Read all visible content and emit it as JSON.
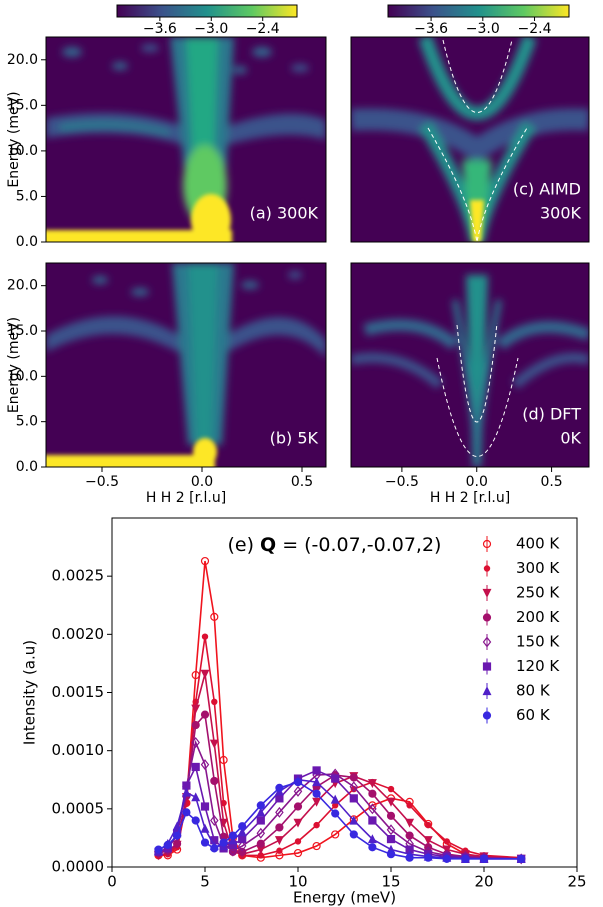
{
  "chart_data": [
    {
      "type": "heatmap",
      "annotation": [
        "(a) 300K"
      ],
      "ylabel": "Energy (meV)",
      "xlim": [
        -0.78,
        0.62
      ],
      "ylim": [
        0,
        22.5
      ],
      "yticks": [
        {
          "value": 0,
          "label": "0.0"
        },
        {
          "value": 5,
          "label": "5.0"
        },
        {
          "value": 10,
          "label": "10.0"
        },
        {
          "value": 15,
          "label": "15.0"
        },
        {
          "value": 20,
          "label": "20.0"
        }
      ],
      "colorbar": {
        "clim": [
          -4.1,
          -2.0
        ],
        "ticks": [
          {
            "value": -3.6,
            "label": "−3.6"
          },
          {
            "value": -3.0,
            "label": "−3.0"
          },
          {
            "value": -2.4,
            "label": "−2.4"
          }
        ]
      }
    },
    {
      "type": "heatmap",
      "annotation": [
        "(c) AIMD",
        "300K"
      ],
      "xlim": [
        -0.84,
        0.75
      ],
      "ylim": [
        0,
        22.5
      ],
      "colorbar": {
        "clim": [
          -4.1,
          -2.0
        ],
        "ticks": [
          {
            "value": -3.6,
            "label": "−3.6"
          },
          {
            "value": -3.0,
            "label": "−3.0"
          },
          {
            "value": -2.4,
            "label": "−2.4"
          }
        ]
      }
    },
    {
      "type": "heatmap",
      "annotation": [
        "(b) 5K"
      ],
      "ylabel": "Energy (meV)",
      "xlabel": "H H 2 [r.l.u]",
      "xlim": [
        -0.78,
        0.62
      ],
      "ylim": [
        0,
        22.5
      ],
      "xticks": [
        {
          "value": -0.5,
          "label": "−0.5"
        },
        {
          "value": 0,
          "label": "0.0"
        },
        {
          "value": 0.5,
          "label": "0.5"
        }
      ],
      "yticks": [
        {
          "value": 0,
          "label": "0.0"
        },
        {
          "value": 5,
          "label": "5.0"
        },
        {
          "value": 10,
          "label": "10.0"
        },
        {
          "value": 15,
          "label": "15.0"
        },
        {
          "value": 20,
          "label": "20.0"
        }
      ]
    },
    {
      "type": "heatmap",
      "annotation": [
        "(d) DFT",
        "0K"
      ],
      "xlabel": "H H 2 [r.l.u]",
      "xlim": [
        -0.84,
        0.75
      ],
      "ylim": [
        0,
        22.5
      ],
      "xticks": [
        {
          "value": -0.5,
          "label": "−0.5"
        },
        {
          "value": 0,
          "label": "0.0"
        },
        {
          "value": 0.5,
          "label": "0.5"
        }
      ]
    },
    {
      "type": "line",
      "title": [
        "(e)",
        "Q",
        "= (-0.07,-0.07,2)"
      ],
      "xlabel": "Energy (meV)",
      "ylabel": "Intensity (a.u)",
      "xlim": [
        0,
        25
      ],
      "ylim": [
        0,
        0.003
      ],
      "xticks": [
        0,
        5,
        10,
        15,
        20,
        25
      ],
      "yticks": [
        {
          "value": 0,
          "label": "0.0000"
        },
        {
          "value": 0.0005,
          "label": "0.0005"
        },
        {
          "value": 0.001,
          "label": "0.0010"
        },
        {
          "value": 0.0015,
          "label": "0.0015"
        },
        {
          "value": 0.002,
          "label": "0.0020"
        },
        {
          "value": 0.0025,
          "label": "0.0025"
        }
      ],
      "legend": "upper right",
      "x": [
        2.5,
        3,
        3.5,
        4,
        4.5,
        5,
        5.5,
        6,
        6.5,
        7,
        8,
        9,
        10,
        11,
        12,
        13,
        14,
        15,
        16,
        17,
        18,
        19,
        20,
        22
      ],
      "series": [
        {
          "name": "400 K",
          "color": "#f0141e",
          "marker": "circle-open",
          "values": [
            0.0001,
            0.0001,
            0.00015,
            0.00055,
            0.00165,
            0.00263,
            0.00215,
            0.00092,
            0.00025,
            0.0001,
            8e-05,
            0.0001,
            0.00012,
            0.00018,
            0.00028,
            0.00041,
            0.00053,
            0.00059,
            0.00056,
            0.00037,
            0.0002,
            0.00011,
            8e-05,
            7e-05
          ]
        },
        {
          "name": "300 K",
          "color": "#dc1032",
          "marker": "star",
          "values": [
            0.0001,
            0.00011,
            0.00017,
            0.00055,
            0.00142,
            0.00198,
            0.00142,
            0.00055,
            0.00017,
            0.0001,
            0.0001,
            0.00014,
            0.00022,
            0.00036,
            0.00053,
            0.00067,
            0.00073,
            0.00067,
            0.00053,
            0.00036,
            0.00022,
            0.00014,
            0.0001,
            8e-05
          ]
        },
        {
          "name": "250 K",
          "color": "#c4104c",
          "marker": "triangle-down",
          "values": [
            0.0001,
            0.00012,
            0.00019,
            0.0006,
            0.00136,
            0.00166,
            0.00106,
            0.00038,
            0.00013,
            0.00011,
            0.00015,
            0.00023,
            0.00038,
            0.00056,
            0.00072,
            0.00078,
            0.00072,
            0.00056,
            0.00038,
            0.00023,
            0.00015,
            0.00011,
            9e-05,
            7e-05
          ]
        },
        {
          "name": "200 K",
          "color": "#a4106c",
          "marker": "circle",
          "values": [
            0.00012,
            0.00014,
            0.0002,
            0.00061,
            0.00122,
            0.00131,
            0.00074,
            0.00026,
            0.00013,
            0.00013,
            0.0002,
            0.00034,
            0.00052,
            0.00069,
            0.00079,
            0.00077,
            0.00063,
            0.00044,
            0.00027,
            0.00017,
            0.00011,
            9e-05,
            8e-05,
            7e-05
          ]
        },
        {
          "name": "150 K",
          "color": "#88168e",
          "marker": "diamond-open",
          "values": [
            0.00013,
            0.00016,
            0.00027,
            0.00069,
            0.00107,
            0.00088,
            0.0004,
            0.00019,
            0.00014,
            0.00018,
            0.00029,
            0.00047,
            0.00065,
            0.00079,
            0.0008,
            0.00069,
            0.0005,
            0.00032,
            0.0002,
            0.00013,
            0.0001,
            9e-05,
            8e-05,
            7e-05
          ]
        },
        {
          "name": "120 K",
          "color": "#6a18b0",
          "marker": "square",
          "values": [
            0.00013,
            0.00016,
            0.00029,
            0.0007,
            0.00086,
            0.00052,
            0.00023,
            0.00016,
            0.00019,
            0.00024,
            0.0004,
            0.00059,
            0.00076,
            0.00083,
            0.00076,
            0.00059,
            0.0004,
            0.00024,
            0.00015,
            0.00011,
            9e-05,
            8e-05,
            7e-05,
            7e-05
          ]
        },
        {
          "name": "80 K",
          "color": "#5020c8",
          "marker": "triangle-up",
          "values": [
            0.00014,
            0.0002,
            0.00035,
            0.00064,
            0.0006,
            0.00033,
            0.00018,
            0.00018,
            0.00023,
            0.0003,
            0.00047,
            0.00065,
            0.00075,
            0.00073,
            0.00058,
            0.0004,
            0.00024,
            0.00015,
            0.00011,
            9e-05,
            8e-05,
            7e-05,
            7e-05,
            7e-05
          ]
        },
        {
          "name": "60 K",
          "color": "#3828e0",
          "marker": "circle",
          "values": [
            0.00015,
            0.00019,
            0.00027,
            0.00047,
            0.0004,
            0.00021,
            0.00016,
            0.00021,
            0.00027,
            0.00035,
            0.00053,
            0.00068,
            0.00073,
            0.00063,
            0.00046,
            0.00028,
            0.00017,
            0.00011,
            8e-05,
            8e-05,
            7e-05,
            7e-05,
            7e-05,
            7e-05
          ]
        }
      ]
    }
  ]
}
